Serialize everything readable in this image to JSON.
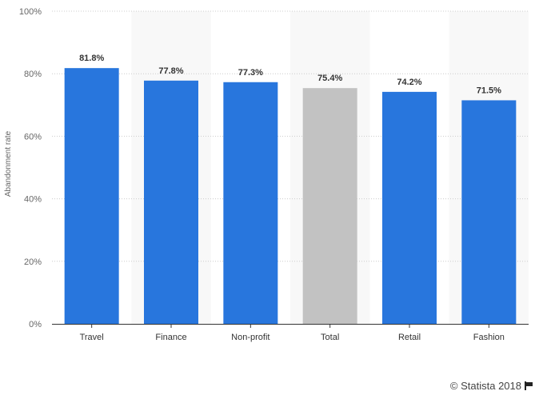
{
  "chart_data": {
    "type": "bar",
    "categories": [
      "Travel",
      "Finance",
      "Non-profit",
      "Total",
      "Retail",
      "Fashion"
    ],
    "values": [
      81.8,
      77.8,
      77.3,
      75.4,
      74.2,
      71.5
    ],
    "value_labels": [
      "81.8%",
      "77.8%",
      "77.3%",
      "75.4%",
      "74.2%",
      "71.5%"
    ],
    "highlight_category": "Total",
    "ylabel": "Abandonment rate",
    "xlabel": "",
    "ylim": [
      0,
      100
    ],
    "yticks": [
      0,
      20,
      40,
      60,
      80,
      100
    ],
    "ytick_labels": [
      "0%",
      "20%",
      "40%",
      "60%",
      "80%",
      "100%"
    ],
    "grid": true,
    "colors": {
      "bar": "#2876dd",
      "highlight": "#c2c2c2",
      "band": "#f8f8f8",
      "grid": "#cccccc"
    }
  },
  "credit": {
    "text": "© Statista 2018"
  }
}
